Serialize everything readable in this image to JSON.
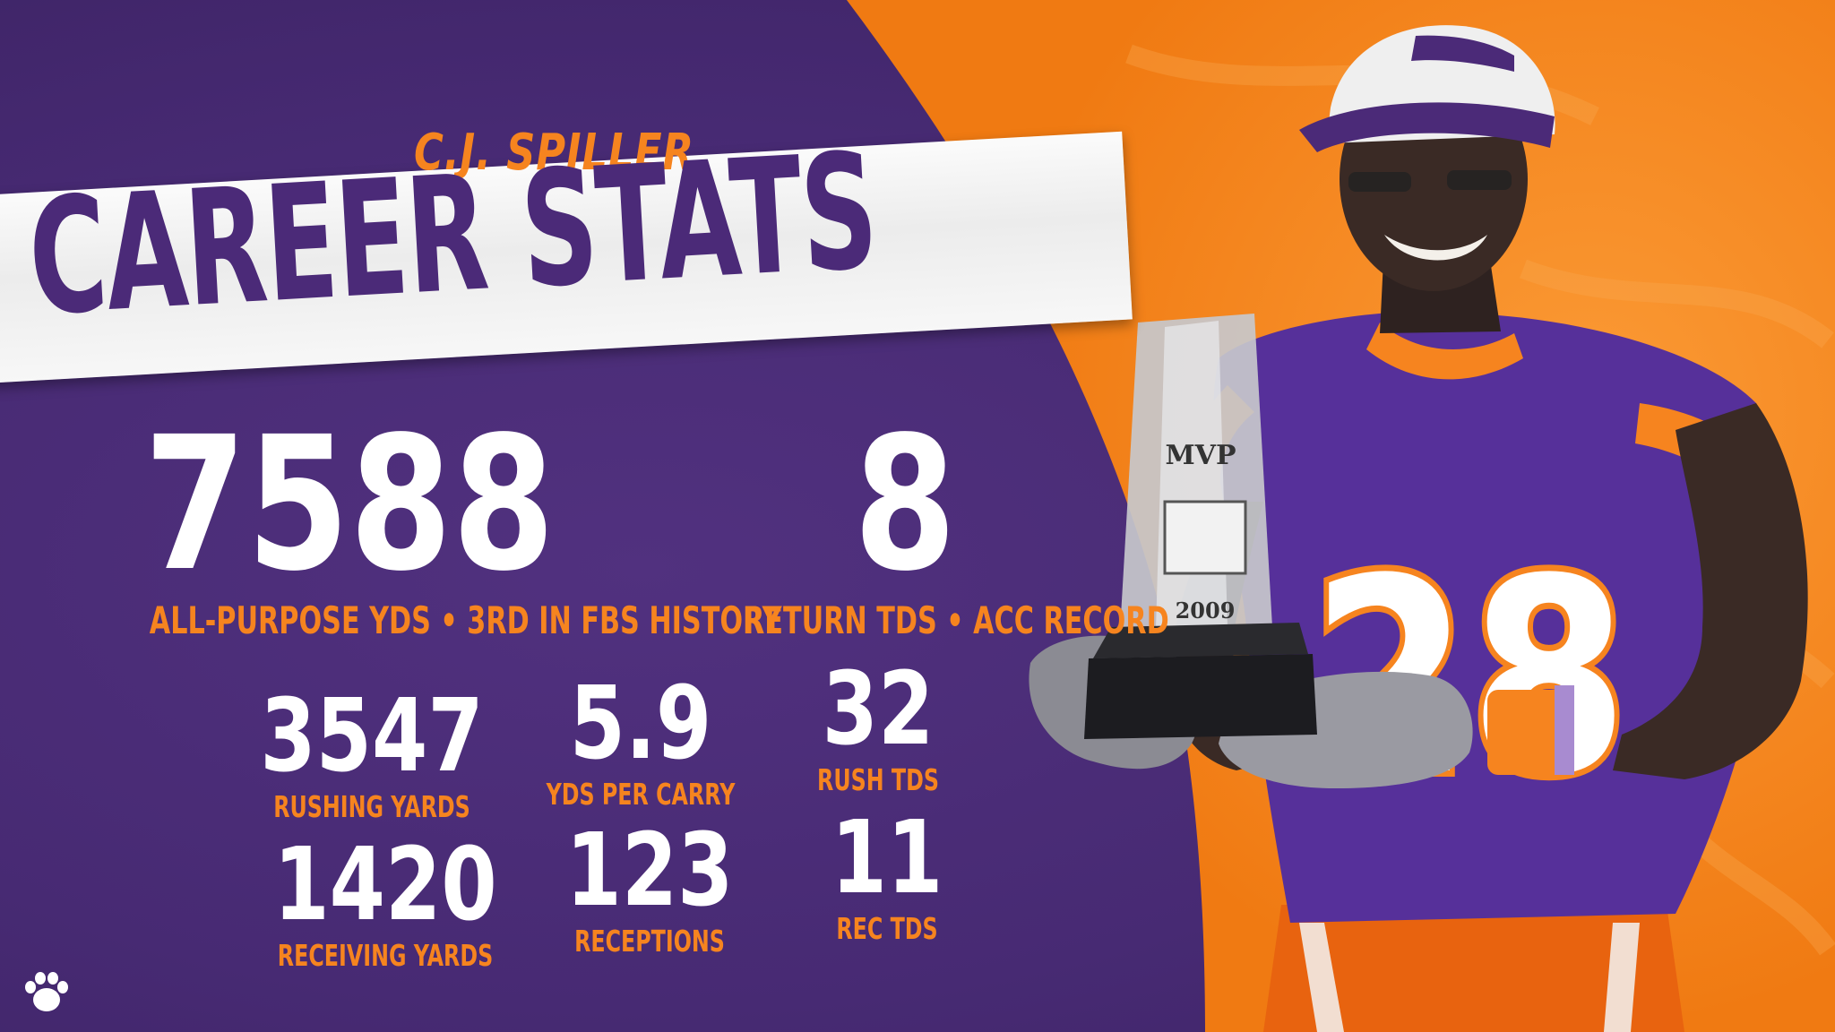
{
  "player": {
    "name": "C.J. SPILLER"
  },
  "headline": "CAREER STATS",
  "featured_stats": [
    {
      "value": "7588",
      "label": "ALL-PURPOSE YDS • 3RD IN FBS HISTORY"
    },
    {
      "value": "8",
      "label": "RETURN TDS • ACC RECORD"
    }
  ],
  "stats": [
    {
      "value": "3547",
      "label": "RUSHING YARDS"
    },
    {
      "value": "5.9",
      "label": "YDS PER CARRY"
    },
    {
      "value": "32",
      "label": "RUSH TDS"
    },
    {
      "value": "1420",
      "label": "RECEIVING YARDS"
    },
    {
      "value": "123",
      "label": "RECEPTIONS"
    },
    {
      "value": "11",
      "label": "REC TDS"
    }
  ],
  "photo": {
    "jersey_number": "28",
    "trophy_text": "MVP",
    "trophy_year": "2009"
  },
  "colors": {
    "purple": "#472a73",
    "orange": "#f6841f",
    "white": "#ffffff"
  },
  "icons": {
    "logo": "tiger-paw-icon"
  }
}
